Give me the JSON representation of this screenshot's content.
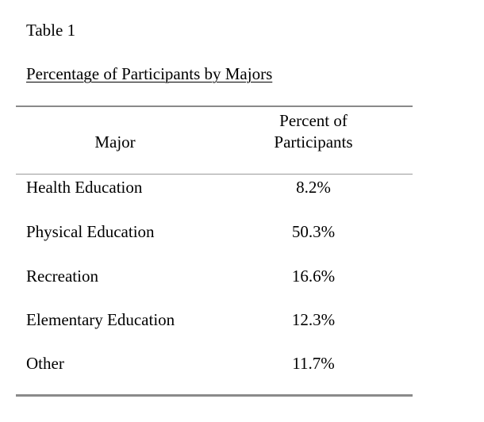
{
  "document": {
    "table_label": "Table 1",
    "table_title": "Percentage of Participants by Majors"
  },
  "table": {
    "headers": {
      "major": "Major",
      "percent_line1": "Percent of",
      "percent_line2": "Participants"
    },
    "rows": [
      {
        "major": "Health Education",
        "percent": "8.2%"
      },
      {
        "major": "Physical Education",
        "percent": "50.3%"
      },
      {
        "major": "Recreation",
        "percent": "16.6%"
      },
      {
        "major": "Elementary Education",
        "percent": "12.3%"
      },
      {
        "major": "Other",
        "percent": "11.7%"
      }
    ]
  }
}
